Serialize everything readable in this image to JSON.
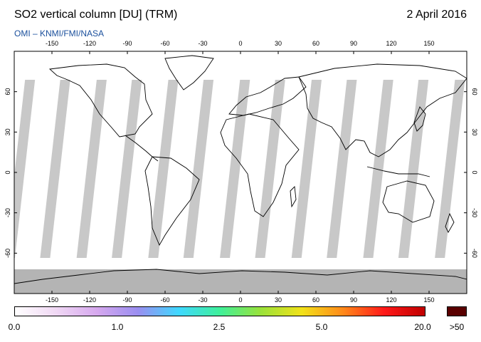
{
  "title": "SO2 vertical column [DU] (TRM)",
  "date": "2 April 2016",
  "subtitle": "OMI  –  KNMI/FMI/NASA",
  "map": {
    "lon_ticks": [
      "-150",
      "-120",
      "-90",
      "-60",
      "-30",
      "0",
      "30",
      "60",
      "90",
      "120",
      "150"
    ],
    "lat_ticks": [
      "60",
      "30",
      "0",
      "-30",
      "-60"
    ],
    "projection": "equirectangular",
    "no_data_color": "#c8c8c8",
    "land_outline_color": "#000000"
  },
  "colorbar": {
    "labels": [
      "0.0",
      "1.0",
      "2.5",
      "5.0",
      "20.0",
      ">50"
    ],
    "overflow_label": ">50",
    "overflow_color": "#5a0000",
    "gradient_stops": [
      "#ffffff",
      "#f0d8f4",
      "#d6a8ee",
      "#9a8ef0",
      "#3fd8ff",
      "#3ff09a",
      "#9ae23a",
      "#f2e21a",
      "#ff8a1a",
      "#ff1a1a",
      "#c00000"
    ]
  }
}
